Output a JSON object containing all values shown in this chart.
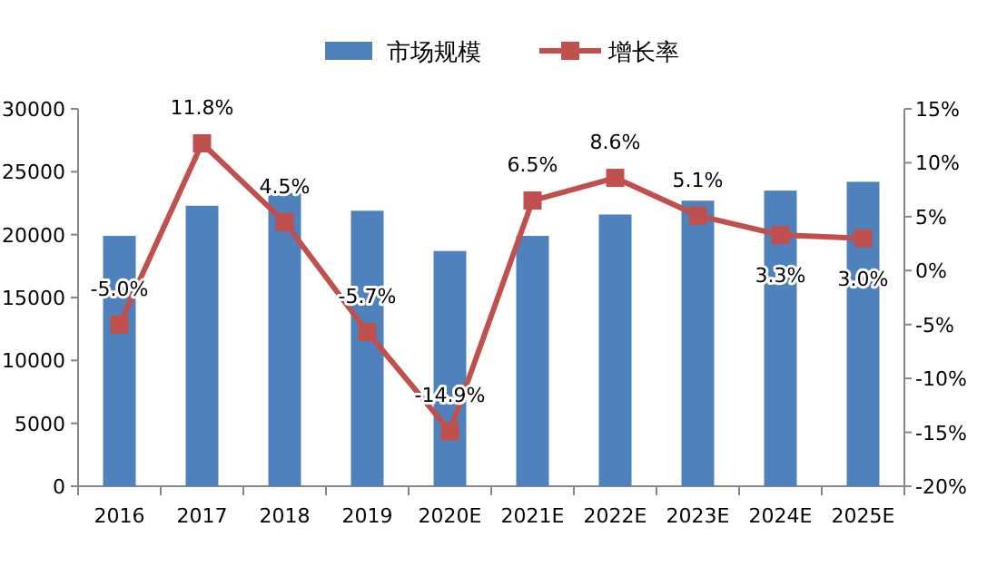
{
  "chart_data": {
    "type": "bar",
    "categories": [
      "2016",
      "2017",
      "2018",
      "2019",
      "2020E",
      "2021E",
      "2022E",
      "2023E",
      "2024E",
      "2025E"
    ],
    "series": [
      {
        "name": "市场规模",
        "color": "#4f81bd",
        "values": [
          19900,
          22300,
          23300,
          21900,
          18700,
          19900,
          21600,
          22700,
          23500,
          24200
        ]
      },
      {
        "name": "增长率",
        "type": "line",
        "axis": "y2",
        "color": "#c0504d",
        "values": [
          -5.0,
          11.8,
          4.5,
          -5.7,
          -14.9,
          6.5,
          8.6,
          5.1,
          3.3,
          3.0
        ],
        "value_labels": [
          "-5.0%",
          "11.8%",
          "4.5%",
          "-5.7%",
          "-14.9%",
          "6.5%",
          "8.6%",
          "5.1%",
          "3.3%",
          "3.0%"
        ]
      }
    ],
    "ylim": [
      0,
      30000
    ],
    "yticks": [
      0,
      5000,
      10000,
      15000,
      20000,
      25000,
      30000
    ],
    "y2lim": [
      -20,
      15
    ],
    "y2ticks": [
      {
        "value": -20,
        "label": "-20%"
      },
      {
        "value": -15,
        "label": "-15%"
      },
      {
        "value": -10,
        "label": "-10%"
      },
      {
        "value": -5,
        "label": "-5%"
      },
      {
        "value": 0,
        "label": "0%"
      },
      {
        "value": 5,
        "label": "5%"
      },
      {
        "value": 10,
        "label": "10%"
      },
      {
        "value": 15,
        "label": "15%"
      }
    ],
    "marker": "square",
    "legend": "top",
    "grid": false
  }
}
